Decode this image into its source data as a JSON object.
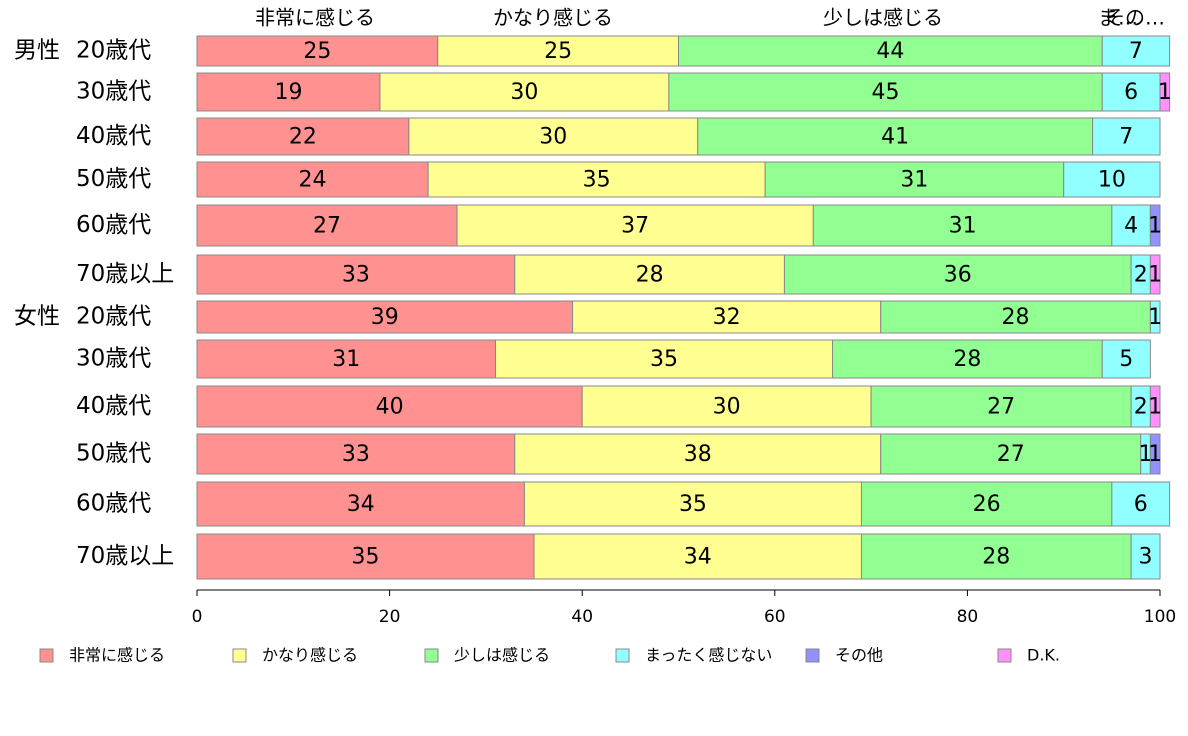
{
  "chart_data": {
    "type": "bar",
    "orientation": "horizontal",
    "stacked": true,
    "categories": [
      {
        "group": "男性",
        "label": "20歳代"
      },
      {
        "group": "",
        "label": "30歳代"
      },
      {
        "group": "",
        "label": "40歳代"
      },
      {
        "group": "",
        "label": "50歳代"
      },
      {
        "group": "",
        "label": "60歳代"
      },
      {
        "group": "",
        "label": "70歳以上"
      },
      {
        "group": "女性",
        "label": "20歳代"
      },
      {
        "group": "",
        "label": "30歳代"
      },
      {
        "group": "",
        "label": "40歳代"
      },
      {
        "group": "",
        "label": "50歳代"
      },
      {
        "group": "",
        "label": "60歳代"
      },
      {
        "group": "",
        "label": "70歳以上"
      }
    ],
    "series": [
      {
        "name": "非常に感じる",
        "color": "#ff9191",
        "values": [
          25,
          19,
          22,
          24,
          27,
          33,
          39,
          31,
          40,
          33,
          34,
          35
        ]
      },
      {
        "name": "かなり感じる",
        "color": "#ffff91",
        "values": [
          25,
          30,
          30,
          35,
          37,
          28,
          32,
          35,
          30,
          38,
          35,
          34
        ]
      },
      {
        "name": "少しは感じる",
        "color": "#91ff91",
        "values": [
          44,
          45,
          41,
          31,
          31,
          36,
          28,
          28,
          27,
          27,
          26,
          28
        ]
      },
      {
        "name": "まったく感じない",
        "color": "#91ffff",
        "values": [
          7,
          6,
          7,
          10,
          4,
          2,
          1,
          5,
          2,
          1,
          6,
          3
        ]
      },
      {
        "name": "その他",
        "color": "#9191ff",
        "values": [
          0,
          0,
          0,
          0,
          1,
          0,
          0,
          0,
          0,
          1,
          0,
          0
        ]
      },
      {
        "name": "D.K.",
        "color": "#ff91ff",
        "values": [
          0,
          1,
          0,
          0,
          0,
          1,
          0,
          0,
          1,
          0,
          0,
          0
        ]
      }
    ],
    "top_labels": [
      "非常に感じる",
      "かなり感じる",
      "少しは感じる",
      "ま…",
      "その…"
    ],
    "x_ticks": [
      0,
      20,
      40,
      60,
      80,
      100
    ],
    "xlim": [
      0,
      100
    ],
    "grid": false,
    "legend_position": "bottom"
  }
}
